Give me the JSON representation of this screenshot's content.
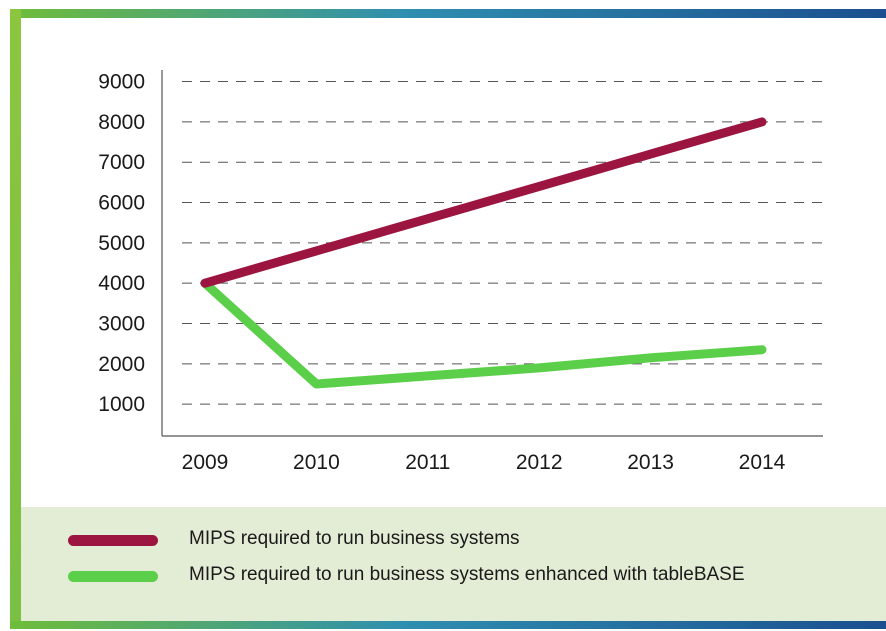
{
  "chart_data": {
    "type": "line",
    "x": [
      "2009",
      "2010",
      "2011",
      "2012",
      "2013",
      "2014"
    ],
    "y_ticks": [
      "1000",
      "2000",
      "3000",
      "4000",
      "5000",
      "6000",
      "7000",
      "8000",
      "9000"
    ],
    "ylim": [
      0,
      9000
    ],
    "grid": "horizontal-dashed",
    "legend_position": "bottom",
    "series": [
      {
        "name": "MIPS required to run business systems",
        "color": "#9c1540",
        "values": [
          4000,
          4800,
          5600,
          6400,
          7200,
          8000
        ]
      },
      {
        "name": "MIPS required to run business systems enhanced with tableBASE",
        "color": "#5ccf4a",
        "values": [
          4000,
          1500,
          1700,
          1900,
          2150,
          2350
        ]
      }
    ]
  }
}
